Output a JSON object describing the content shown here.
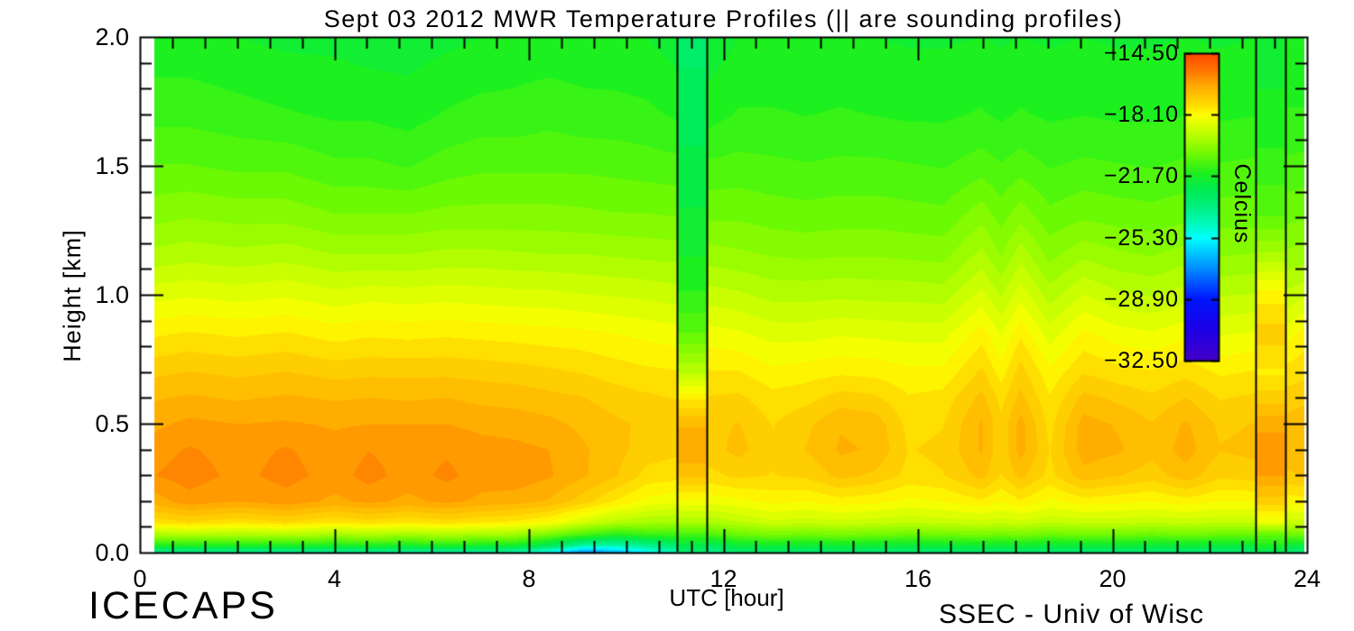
{
  "title": "Sept 03 2012 MWR Temperature Profiles (|| are sounding profiles)",
  "axes": {
    "x_label": "UTC [hour]",
    "y_label": "Height [km]",
    "x_ticks": [
      {
        "label": "0",
        "value": 0
      },
      {
        "label": "4",
        "value": 4
      },
      {
        "label": "8",
        "value": 8
      },
      {
        "label": "12",
        "value": 12
      },
      {
        "label": "16",
        "value": 16
      },
      {
        "label": "20",
        "value": 20
      },
      {
        "label": "24",
        "value": 24
      }
    ],
    "y_ticks": [
      {
        "label": "0.0",
        "value": 0.0
      },
      {
        "label": "0.5",
        "value": 0.5
      },
      {
        "label": "1.0",
        "value": 1.0
      },
      {
        "label": "1.5",
        "value": 1.5
      },
      {
        "label": "2.0",
        "value": 2.0
      }
    ]
  },
  "colorbar": {
    "title": "Celcius",
    "ticks": [
      {
        "label": "−14.50",
        "value": -14.5
      },
      {
        "label": "−18.10",
        "value": -18.1
      },
      {
        "label": "−21.70",
        "value": -21.7
      },
      {
        "label": "−25.30",
        "value": -25.3
      },
      {
        "label": "−28.90",
        "value": -28.9
      },
      {
        "label": "−32.50",
        "value": -32.5
      }
    ],
    "max": -14.5,
    "min": -32.5
  },
  "footer": {
    "left": "ICECAPS",
    "right": "SSEC - Univ of Wisc"
  },
  "chart_data": {
    "type": "heatmap",
    "xlabel": "UTC [hour]",
    "ylabel": "Height [km]",
    "xlim": [
      0,
      24
    ],
    "ylim": [
      0,
      2
    ],
    "units": "Celcius",
    "value_range": [
      -32.5,
      -14.5
    ],
    "contour_step": 0.36,
    "data_t_start": 0.28,
    "data_t_end": 23.93,
    "heights": [
      0.0,
      0.03,
      0.07,
      0.12,
      0.2,
      0.3,
      0.4,
      0.5,
      0.6,
      0.7,
      0.85,
      1.0,
      1.15,
      1.3,
      1.5,
      1.7,
      2.0
    ],
    "times": [
      0.28,
      1,
      2,
      3,
      4,
      4.7,
      5.5,
      6.3,
      7,
      7.7,
      8.4,
      9.1,
      9.8,
      10.4,
      11.05,
      11.65,
      12.3,
      13,
      13.7,
      14.4,
      15.1,
      15.8,
      16.5,
      17.3,
      17.7,
      18.1,
      18.7,
      19.4,
      20.1,
      20.8,
      21.5,
      22.2,
      22.95,
      23.55,
      23.93
    ],
    "temps": [
      [
        -24.0,
        -21.5,
        -19.5,
        -17.6,
        -16.5,
        -15.95,
        -16.1,
        -16.4,
        -16.7,
        -17.1,
        -17.8,
        -18.6,
        -19.4,
        -20.0,
        -20.6,
        -21.1,
        -21.6
      ],
      [
        -24.0,
        -21.4,
        -19.4,
        -17.4,
        -16.1,
        -15.75,
        -15.9,
        -16.2,
        -16.6,
        -17.0,
        -17.7,
        -18.5,
        -19.3,
        -19.9,
        -20.6,
        -21.1,
        -21.6
      ],
      [
        -24.0,
        -21.5,
        -19.5,
        -17.6,
        -16.3,
        -16.05,
        -16.1,
        -16.3,
        -16.7,
        -17.1,
        -17.8,
        -18.6,
        -19.4,
        -20.0,
        -20.7,
        -21.2,
        -21.7
      ],
      [
        -24.1,
        -21.5,
        -19.4,
        -17.4,
        -16.1,
        -15.8,
        -15.9,
        -16.25,
        -16.6,
        -17.0,
        -17.7,
        -18.5,
        -19.3,
        -20.0,
        -20.7,
        -21.3,
        -21.8
      ],
      [
        -24.0,
        -21.6,
        -19.6,
        -17.7,
        -16.4,
        -16.1,
        -16.15,
        -16.35,
        -16.7,
        -17.15,
        -17.9,
        -18.7,
        -19.5,
        -20.2,
        -20.9,
        -21.4,
        -21.8
      ],
      [
        -24.0,
        -21.5,
        -19.5,
        -17.5,
        -16.2,
        -15.8,
        -15.95,
        -16.3,
        -16.65,
        -17.1,
        -17.8,
        -18.6,
        -19.5,
        -20.2,
        -20.9,
        -21.4,
        -21.9
      ],
      [
        -24.2,
        -21.6,
        -19.6,
        -17.7,
        -16.4,
        -16.1,
        -16.1,
        -16.3,
        -16.7,
        -17.1,
        -17.85,
        -18.65,
        -19.5,
        -20.2,
        -21.0,
        -21.5,
        -21.9
      ],
      [
        -24.2,
        -21.5,
        -19.5,
        -17.5,
        -16.2,
        -15.85,
        -16.0,
        -16.3,
        -16.65,
        -17.1,
        -17.8,
        -18.6,
        -19.4,
        -20.1,
        -20.8,
        -21.3,
        -21.8
      ],
      [
        -24.3,
        -21.6,
        -19.6,
        -17.7,
        -16.4,
        -16.1,
        -16.15,
        -16.4,
        -16.75,
        -17.15,
        -17.85,
        -18.65,
        -19.4,
        -20.1,
        -20.7,
        -21.2,
        -21.7
      ],
      [
        -24.5,
        -21.7,
        -19.7,
        -17.8,
        -16.5,
        -16.05,
        -16.2,
        -16.45,
        -16.8,
        -17.2,
        -17.9,
        -18.7,
        -19.45,
        -20.1,
        -20.7,
        -21.2,
        -21.6
      ],
      [
        -25.5,
        -22.5,
        -20.3,
        -18.1,
        -16.7,
        -16.25,
        -16.3,
        -16.55,
        -16.9,
        -17.3,
        -17.95,
        -18.7,
        -19.5,
        -20.1,
        -20.7,
        -21.1,
        -21.6
      ],
      [
        -27.5,
        -24.0,
        -21.0,
        -18.8,
        -17.2,
        -16.6,
        -16.6,
        -16.75,
        -17.0,
        -17.4,
        -18.0,
        -18.8,
        -19.5,
        -20.15,
        -20.7,
        -21.2,
        -21.6
      ],
      [
        -26.8,
        -24.2,
        -21.5,
        -19.3,
        -17.8,
        -17.0,
        -16.9,
        -16.95,
        -17.2,
        -17.55,
        -18.1,
        -18.85,
        -19.55,
        -20.2,
        -20.75,
        -21.2,
        -21.65
      ],
      [
        -25.5,
        -23.6,
        -21.2,
        -19.5,
        -18.2,
        -17.5,
        -17.2,
        -17.1,
        -17.3,
        -17.65,
        -18.2,
        -18.9,
        -19.6,
        -20.2,
        -20.8,
        -21.25,
        -21.7
      ],
      [
        -24.5,
        -23.0,
        -21.1,
        -19.6,
        -18.4,
        -17.6,
        -17.3,
        -17.2,
        -17.4,
        -17.7,
        -18.3,
        -19.0,
        -19.65,
        -20.25,
        -20.85,
        -21.4,
        -21.9
      ],
      [
        -24.0,
        -22.8,
        -21.0,
        -19.5,
        -18.35,
        -17.5,
        -17.2,
        -17.15,
        -17.35,
        -17.7,
        -18.3,
        -19.0,
        -19.7,
        -20.3,
        -20.9,
        -21.5,
        -22.0
      ],
      [
        -23.2,
        -22.0,
        -20.5,
        -19.2,
        -18.2,
        -17.3,
        -16.9,
        -17.0,
        -17.3,
        -17.7,
        -18.4,
        -19.1,
        -19.8,
        -20.3,
        -20.85,
        -21.3,
        -21.7
      ],
      [
        -23.2,
        -21.8,
        -20.3,
        -18.9,
        -18.0,
        -17.4,
        -17.3,
        -17.4,
        -17.6,
        -18.0,
        -18.6,
        -19.3,
        -19.9,
        -20.4,
        -20.9,
        -21.3,
        -21.7
      ],
      [
        -23.3,
        -21.9,
        -20.4,
        -19.0,
        -18.1,
        -17.3,
        -17.0,
        -17.1,
        -17.5,
        -17.9,
        -18.6,
        -19.3,
        -19.95,
        -20.45,
        -20.95,
        -21.35,
        -21.7
      ],
      [
        -23.2,
        -21.8,
        -20.3,
        -18.9,
        -17.9,
        -16.9,
        -16.6,
        -16.7,
        -17.2,
        -17.8,
        -18.5,
        -19.25,
        -19.9,
        -20.4,
        -20.9,
        -21.3,
        -21.7
      ],
      [
        -23.3,
        -21.9,
        -20.4,
        -19.0,
        -18.0,
        -17.1,
        -16.7,
        -16.8,
        -17.3,
        -17.85,
        -18.55,
        -19.3,
        -19.9,
        -20.4,
        -20.9,
        -21.35,
        -21.7
      ],
      [
        -23.4,
        -22.0,
        -20.5,
        -19.1,
        -18.2,
        -17.5,
        -17.4,
        -17.5,
        -17.7,
        -18.0,
        -18.6,
        -19.3,
        -19.95,
        -20.45,
        -20.95,
        -21.4,
        -21.75
      ],
      [
        -23.3,
        -21.9,
        -20.4,
        -19.0,
        -18.1,
        -17.4,
        -17.3,
        -17.4,
        -17.6,
        -18.0,
        -18.6,
        -19.35,
        -20.0,
        -20.5,
        -21.0,
        -21.4,
        -21.75
      ],
      [
        -23.2,
        -21.8,
        -20.3,
        -18.9,
        -17.8,
        -16.9,
        -16.6,
        -16.6,
        -16.9,
        -17.3,
        -17.9,
        -18.7,
        -19.4,
        -20.0,
        -20.8,
        -21.3,
        -21.7
      ],
      [
        -23.3,
        -21.9,
        -20.4,
        -19.0,
        -18.1,
        -17.4,
        -17.3,
        -17.3,
        -17.5,
        -17.9,
        -18.5,
        -19.2,
        -19.9,
        -20.4,
        -20.95,
        -21.4,
        -21.75
      ],
      [
        -23.2,
        -21.8,
        -20.3,
        -18.9,
        -17.8,
        -16.9,
        -16.5,
        -16.5,
        -16.9,
        -17.2,
        -17.8,
        -18.6,
        -19.3,
        -20.0,
        -20.8,
        -21.3,
        -21.7
      ],
      [
        -23.4,
        -22.0,
        -20.5,
        -19.1,
        -18.2,
        -17.5,
        -17.4,
        -17.5,
        -17.7,
        -18.0,
        -18.65,
        -19.35,
        -20.0,
        -20.5,
        -21.0,
        -21.4,
        -21.75
      ],
      [
        -23.3,
        -21.9,
        -20.4,
        -19.0,
        -17.9,
        -16.8,
        -16.45,
        -16.5,
        -16.9,
        -17.4,
        -18.0,
        -18.8,
        -19.6,
        -20.3,
        -20.9,
        -21.35,
        -21.7
      ],
      [
        -23.3,
        -21.9,
        -20.4,
        -19.0,
        -18.0,
        -17.0,
        -16.6,
        -16.7,
        -17.1,
        -17.6,
        -18.3,
        -19.1,
        -19.8,
        -20.4,
        -20.95,
        -21.4,
        -21.75
      ],
      [
        -23.4,
        -22.0,
        -20.5,
        -19.1,
        -18.1,
        -17.2,
        -16.9,
        -17.0,
        -17.3,
        -17.7,
        -18.4,
        -19.2,
        -19.9,
        -20.45,
        -21.0,
        -21.4,
        -21.75
      ],
      [
        -23.3,
        -21.9,
        -20.4,
        -19.0,
        -17.9,
        -16.8,
        -16.5,
        -16.6,
        -17.0,
        -17.5,
        -18.2,
        -19.0,
        -19.7,
        -20.35,
        -20.9,
        -21.35,
        -21.7
      ],
      [
        -23.4,
        -22.0,
        -20.5,
        -19.1,
        -18.1,
        -17.3,
        -17.0,
        -17.1,
        -17.4,
        -17.8,
        -18.5,
        -19.2,
        -19.9,
        -20.4,
        -20.95,
        -21.4,
        -21.75
      ],
      [
        -23.4,
        -22.0,
        -20.5,
        -19.1,
        -18.1,
        -17.2,
        -16.9,
        -17.0,
        -17.3,
        -17.7,
        -18.4,
        -19.15,
        -19.85,
        -20.4,
        -20.9,
        -21.35,
        -21.7
      ],
      [
        -23.4,
        -22.0,
        -20.5,
        -19.0,
        -18.0,
        -17.1,
        -16.8,
        -16.9,
        -17.2,
        -17.6,
        -18.3,
        -19.1,
        -19.8,
        -20.35,
        -20.9,
        -21.3,
        -21.7
      ],
      [
        -23.5,
        -22.0,
        -20.4,
        -18.9,
        -17.9,
        -17.0,
        -16.7,
        -16.8,
        -17.1,
        -17.5,
        -17.9,
        -18.9,
        -19.7,
        -20.3,
        -20.85,
        -21.3,
        -21.7
      ]
    ],
    "soundings": [
      {
        "name": "sounding-profile-1",
        "t_start": 11.05,
        "t_end": 11.65,
        "temps": [
          -23.3,
          -22.3,
          -21.0,
          -19.5,
          -18.2,
          -16.9,
          -16.4,
          -16.7,
          -17.8,
          -19.2,
          -20.6,
          -21.3,
          -21.7,
          -22.0,
          -22.3,
          -22.6,
          -22.9
        ]
      },
      {
        "name": "sounding-profile-2",
        "t_start": 22.95,
        "t_end": 23.55,
        "temps": [
          -22.8,
          -21.5,
          -20.6,
          -18.4,
          -17.2,
          -16.3,
          -16.1,
          -16.4,
          -17.2,
          -17.8,
          -17.2,
          -17.9,
          -19.4,
          -20.6,
          -21.2,
          -21.6,
          -21.9
        ]
      }
    ],
    "colormap_anchors": [
      [
        0.0,
        255,
        70,
        0
      ],
      [
        0.056,
        255,
        120,
        0
      ],
      [
        0.111,
        255,
        175,
        0
      ],
      [
        0.167,
        255,
        220,
        0
      ],
      [
        0.2,
        255,
        255,
        0
      ],
      [
        0.26,
        190,
        255,
        0
      ],
      [
        0.32,
        120,
        250,
        0
      ],
      [
        0.389,
        30,
        240,
        30
      ],
      [
        0.44,
        0,
        235,
        80
      ],
      [
        0.5,
        0,
        240,
        130
      ],
      [
        0.556,
        0,
        250,
        190
      ],
      [
        0.6,
        0,
        255,
        255
      ],
      [
        0.7,
        0,
        140,
        255
      ],
      [
        0.8,
        0,
        20,
        255
      ],
      [
        0.9,
        30,
        0,
        230
      ],
      [
        1.0,
        70,
        0,
        200
      ]
    ],
    "axis_color": "#000000",
    "background_color": "#ffffff"
  }
}
